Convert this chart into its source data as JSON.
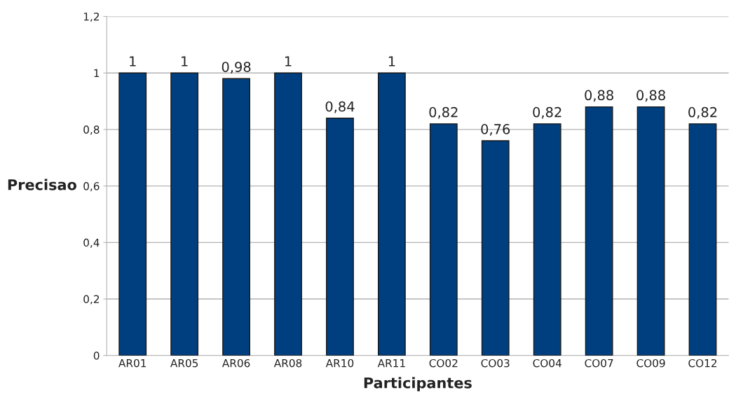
{
  "chart_data": {
    "type": "bar",
    "xlabel": "Participantes",
    "ylabel": "Precisao",
    "categories": [
      "AR01",
      "AR05",
      "AR06",
      "AR08",
      "AR10",
      "AR11",
      "CO02",
      "CO03",
      "CO04",
      "CO07",
      "CO09",
      "CO12"
    ],
    "values": [
      1,
      1,
      0.98,
      1,
      0.84,
      1,
      0.82,
      0.76,
      0.82,
      0.88,
      0.88,
      0.82
    ],
    "value_labels": [
      "1",
      "1",
      "0,98",
      "1",
      "0,84",
      "1",
      "0,82",
      "0,76",
      "0,82",
      "0,88",
      "0,88",
      "0,82"
    ],
    "color": "#003f7f",
    "ylim": [
      0,
      1.2
    ],
    "yticks": [
      {
        "value": 0,
        "label": "0"
      },
      {
        "value": 0.2,
        "label": "0,2"
      },
      {
        "value": 0.4,
        "label": "0,4"
      },
      {
        "value": 0.6,
        "label": "0,6"
      },
      {
        "value": 0.8,
        "label": "0,8"
      },
      {
        "value": 1,
        "label": "1"
      },
      {
        "value": 1.2,
        "label": "1,2"
      }
    ],
    "grid": "y"
  }
}
